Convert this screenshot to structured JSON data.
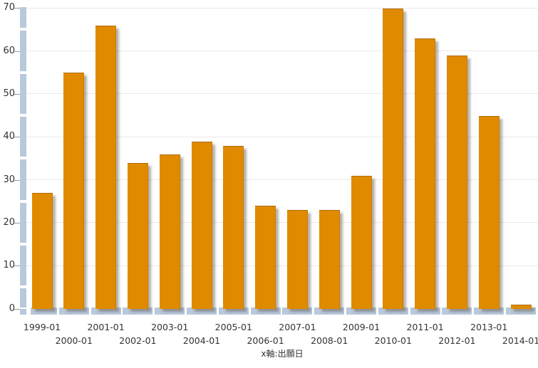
{
  "chart_data": {
    "type": "bar",
    "categories": [
      "1999-01",
      "2000-01",
      "2001-01",
      "2002-01",
      "2003-01",
      "2004-01",
      "2005-01",
      "2006-01",
      "2007-01",
      "2008-01",
      "2009-01",
      "2010-01",
      "2011-01",
      "2012-01",
      "2013-01",
      "2014-01"
    ],
    "values": [
      27,
      55,
      66,
      34,
      36,
      39,
      38,
      24,
      23,
      23,
      31,
      70,
      63,
      59,
      45,
      1
    ],
    "title": "",
    "xlabel": "x軸:出願日",
    "ylabel": "",
    "ylim": [
      0,
      70
    ],
    "ytick_step": 10,
    "ytick_labels": [
      "0",
      "10",
      "20",
      "30",
      "40",
      "50",
      "60",
      "70"
    ],
    "grid": "horizontal-major-only",
    "legend_position": "none",
    "x_label_layout": "staggered-two-rows",
    "colors": {
      "bar": "#e08a00",
      "axis_bar": "#b7c9db",
      "gridline": "#e9e9e9",
      "tick": "#9b9b9b",
      "text": "#333333",
      "background": "#ffffff"
    }
  }
}
